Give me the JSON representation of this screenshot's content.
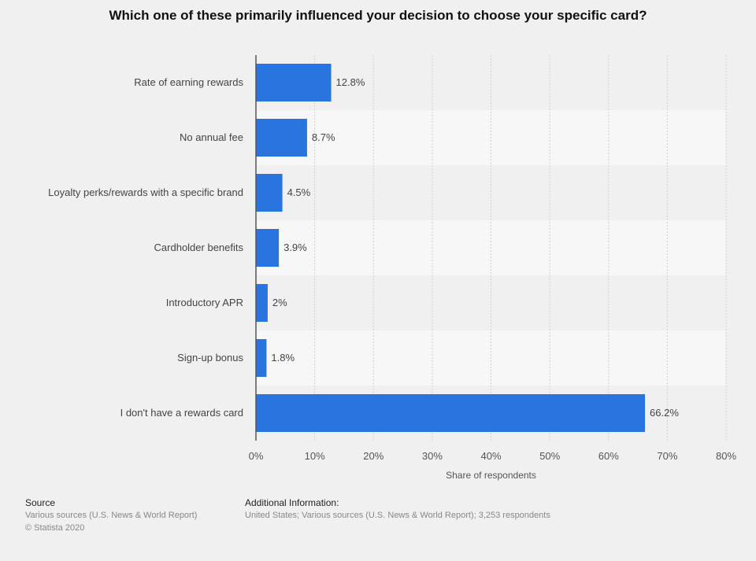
{
  "chart_data": {
    "type": "bar",
    "orientation": "horizontal",
    "title": "Which one of these primarily influenced your decision to choose your specific card?",
    "categories": [
      "Rate of earning rewards",
      "No annual fee",
      "Loyalty perks/rewards with a specific brand",
      "Cardholder benefits",
      "Introductory APR",
      "Sign-up bonus",
      "I don't have a rewards card"
    ],
    "values": [
      12.8,
      8.7,
      4.5,
      3.9,
      2,
      1.8,
      66.2
    ],
    "value_labels": [
      "12.8%",
      "8.7%",
      "4.5%",
      "3.9%",
      "2%",
      "1.8%",
      "66.2%"
    ],
    "xlabel": "Share of respondents",
    "ylabel": "",
    "xlim": [
      0,
      80
    ],
    "xticks": [
      0,
      10,
      20,
      30,
      40,
      50,
      60,
      70,
      80
    ],
    "xtick_labels": [
      "0%",
      "10%",
      "20%",
      "30%",
      "40%",
      "50%",
      "60%",
      "70%",
      "80%"
    ],
    "grid": "vertical dashed",
    "bar_color": "#2a74e0"
  },
  "footer": {
    "source_heading": "Source",
    "source_text": "Various sources (U.S. News & World Report)",
    "copyright": "© Statista 2020",
    "info_heading": "Additional Information:",
    "info_text": "United States; Various sources (U.S. News & World Report); 3,253 respondents"
  }
}
